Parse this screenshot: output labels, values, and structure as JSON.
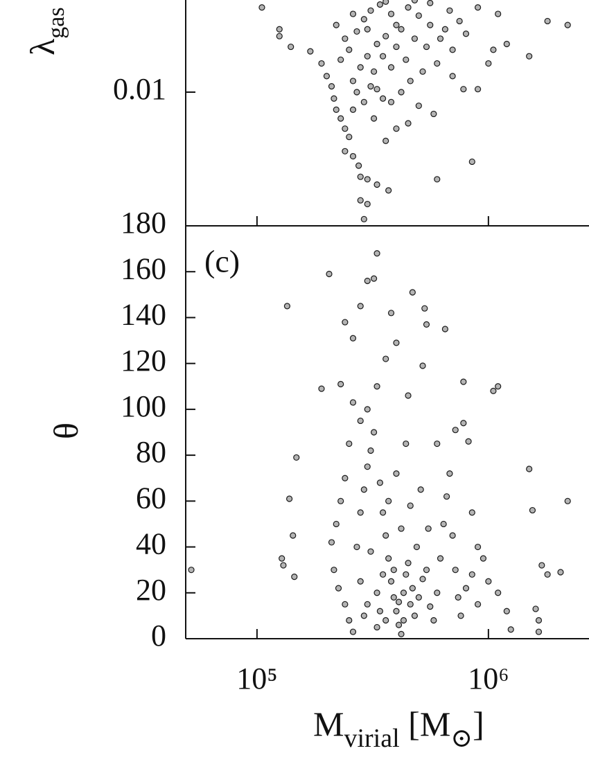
{
  "chart_data": [
    {
      "type": "scatter",
      "xlog": true,
      "ylog": true,
      "ylabel": {
        "main": "λ",
        "sub": "gas"
      },
      "xlim": [
        49200,
        2720000
      ],
      "ylim": [
        0.00112,
        0.0452
      ],
      "xticks": [
        100000,
        1000000
      ],
      "yticks": [
        0.01
      ],
      "color": "#b4b4b4",
      "x": [
        105000,
        125000,
        125000,
        140000,
        170000,
        190000,
        200000,
        210000,
        215000,
        220000,
        230000,
        240000,
        250000,
        240000,
        260000,
        275000,
        280000,
        300000,
        330000,
        370000,
        280000,
        300000,
        290000,
        600000,
        850000,
        580000,
        500000,
        450000,
        400000,
        360000,
        320000,
        350000,
        380000,
        420000,
        460000,
        520000,
        600000,
        700000,
        780000,
        900000,
        1000000,
        1050000,
        1200000,
        1500000,
        1800000,
        2200000,
        1100000,
        900000,
        750000,
        650000,
        560000,
        500000,
        450000,
        400000,
        360000,
        330000,
        300000,
        280000,
        260000,
        250000,
        270000,
        290000,
        310000,
        340000,
        380000,
        420000,
        480000,
        540000,
        620000,
        700000,
        800000,
        350000,
        380000,
        400000,
        440000,
        300000,
        320000,
        270000,
        290000,
        310000,
        260000,
        330000,
        230000,
        240000,
        220000,
        260000,
        360000,
        560000,
        680000,
        480000
      ],
      "values": [
        0.04,
        0.028,
        0.025,
        0.021,
        0.0195,
        0.016,
        0.013,
        0.011,
        0.009,
        0.0075,
        0.0065,
        0.0055,
        0.0048,
        0.0038,
        0.0035,
        0.003,
        0.0025,
        0.0024,
        0.0022,
        0.002,
        0.0017,
        0.0016,
        0.00125,
        0.0024,
        0.0032,
        0.007,
        0.008,
        0.006,
        0.0055,
        0.0045,
        0.0065,
        0.009,
        0.0085,
        0.01,
        0.012,
        0.014,
        0.016,
        0.013,
        0.0105,
        0.0105,
        0.016,
        0.02,
        0.022,
        0.018,
        0.032,
        0.03,
        0.036,
        0.04,
        0.032,
        0.028,
        0.03,
        0.035,
        0.04,
        0.03,
        0.025,
        0.022,
        0.018,
        0.015,
        0.012,
        0.02,
        0.027,
        0.033,
        0.038,
        0.042,
        0.036,
        0.028,
        0.024,
        0.021,
        0.024,
        0.02,
        0.026,
        0.018,
        0.015,
        0.021,
        0.017,
        0.028,
        0.014,
        0.01,
        0.0085,
        0.011,
        0.0075,
        0.0105,
        0.017,
        0.024,
        0.03,
        0.036,
        0.044,
        0.043,
        0.038,
        0.045
      ]
    },
    {
      "type": "scatter",
      "xlog": true,
      "ylog": false,
      "annotation": "(c)",
      "ylabel": {
        "main": "θ"
      },
      "xlabel": {
        "main": "M",
        "sub": "virial",
        "unit": " [M",
        "unit_sub": "⊙",
        "close": "]"
      },
      "xlim": [
        49200,
        2720000
      ],
      "ylim": [
        0,
        180
      ],
      "xticks": [
        {
          "value": 100000,
          "label": "10⁵"
        },
        {
          "value": 1000000,
          "label": "10⁶"
        }
      ],
      "yticks": [
        0,
        20,
        40,
        60,
        80,
        100,
        120,
        140,
        160,
        180
      ],
      "color": "#b4b4b4",
      "x": [
        52000,
        135000,
        148000,
        138000,
        143000,
        128000,
        130000,
        145000,
        205000,
        190000,
        230000,
        240000,
        260000,
        280000,
        300000,
        320000,
        330000,
        380000,
        470000,
        530000,
        540000,
        650000,
        780000,
        1050000,
        1100000,
        1500000,
        2200000,
        1550000,
        1800000,
        2050000,
        1700000,
        1600000,
        1650000,
        1650000,
        1250000,
        1000000,
        900000,
        850000,
        780000,
        820000,
        720000,
        600000,
        520000,
        450000,
        400000,
        360000,
        330000,
        300000,
        280000,
        260000,
        250000,
        240000,
        230000,
        220000,
        210000,
        215000,
        225000,
        240000,
        250000,
        260000,
        270000,
        280000,
        290000,
        300000,
        310000,
        320000,
        340000,
        350000,
        360000,
        370000,
        380000,
        390000,
        400000,
        410000,
        420000,
        430000,
        440000,
        450000,
        460000,
        470000,
        480000,
        500000,
        520000,
        540000,
        560000,
        580000,
        600000,
        620000,
        640000,
        660000,
        680000,
        700000,
        720000,
        740000,
        760000,
        800000,
        850000,
        900000,
        950000,
        1100000,
        1200000,
        330000,
        350000,
        300000,
        280000,
        310000,
        340000,
        370000,
        400000,
        420000,
        440000,
        460000,
        490000,
        510000,
        550000,
        330000,
        360000,
        390000,
        410000,
        430000,
        290000
      ],
      "values": [
        30,
        145,
        79,
        61,
        45,
        35,
        32,
        27,
        159,
        109,
        111,
        138,
        131,
        145,
        156,
        157,
        168,
        142,
        151,
        144,
        137,
        135,
        112,
        108,
        110,
        74,
        60,
        56,
        28,
        29,
        32,
        13,
        8,
        3,
        4,
        25,
        40,
        55,
        94,
        86,
        91,
        85,
        119,
        106,
        129,
        122,
        110,
        100,
        95,
        103,
        85,
        70,
        60,
        50,
        42,
        30,
        22,
        15,
        8,
        3,
        40,
        55,
        65,
        75,
        82,
        90,
        68,
        55,
        45,
        35,
        25,
        18,
        12,
        6,
        2,
        20,
        28,
        33,
        15,
        22,
        10,
        18,
        26,
        30,
        14,
        8,
        20,
        35,
        50,
        62,
        72,
        45,
        30,
        18,
        10,
        22,
        28,
        15,
        35,
        20,
        12,
        20,
        28,
        15,
        25,
        38,
        12,
        60,
        72,
        48,
        85,
        58,
        40,
        65,
        48,
        5,
        8,
        30,
        16,
        8,
        10
      ]
    }
  ]
}
